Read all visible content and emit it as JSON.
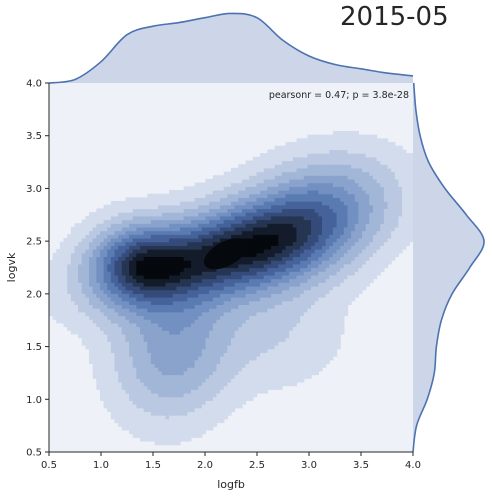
{
  "page_title": "2015-05",
  "chart_data": {
    "type": "kde-joint",
    "xlabel": "logfb",
    "ylabel": "logvk",
    "xlim": [
      0.5,
      4.0
    ],
    "ylim": [
      0.5,
      4.0
    ],
    "x_ticks": [
      "0.5",
      "1.0",
      "1.5",
      "2.0",
      "2.5",
      "3.0",
      "3.5",
      "4.0"
    ],
    "y_ticks": [
      "0.5",
      "1.0",
      "1.5",
      "2.0",
      "2.5",
      "3.0",
      "3.5",
      "4.0"
    ],
    "annotation": "pearsonr = 0.47; p = 3.8e-28",
    "grid": false,
    "colors": {
      "line": "#4c72b0",
      "fill": "#ccd6e8",
      "background": "#eef1f7",
      "levels": [
        "#d3dcec",
        "#bac9e1",
        "#a2b6d7",
        "#8aa3cc",
        "#7290c2",
        "#5a7ab2",
        "#46629a",
        "#354b79",
        "#253552",
        "#141c2b",
        "#05080d"
      ]
    },
    "joint_peak": {
      "x": 2.2,
      "y": 2.38,
      "r": 0.46
    },
    "density_levels": [
      0.04,
      0.11,
      0.19,
      0.28,
      0.37,
      0.46,
      0.56,
      0.66,
      0.75,
      0.84,
      0.92
    ],
    "joint_components": [
      {
        "x": 2.2,
        "y": 2.4,
        "sx": 0.72,
        "sy": 0.32,
        "rho": 0.5,
        "w": 1.0
      },
      {
        "x": 1.35,
        "y": 2.3,
        "sx": 0.3,
        "sy": 0.25,
        "rho": 0.0,
        "w": 0.65
      },
      {
        "x": 1.7,
        "y": 1.5,
        "sx": 0.38,
        "sy": 0.45,
        "rho": 0.1,
        "w": 0.42
      },
      {
        "x": 2.9,
        "y": 2.6,
        "sx": 0.5,
        "sy": 0.4,
        "rho": 0.35,
        "w": 0.4
      },
      {
        "x": 3.2,
        "y": 3.0,
        "sx": 0.45,
        "sy": 0.28,
        "rho": 0.2,
        "w": 0.14
      },
      {
        "x": 2.7,
        "y": 1.6,
        "sx": 0.45,
        "sy": 0.35,
        "rho": 0.0,
        "w": 0.12
      }
    ],
    "x_marginal": {
      "x": [
        0.5,
        0.75,
        1.0,
        1.25,
        1.5,
        1.75,
        2.0,
        2.25,
        2.5,
        2.75,
        3.0,
        3.25,
        3.5,
        3.75,
        4.0
      ],
      "density": [
        0.0,
        0.05,
        0.3,
        0.68,
        0.8,
        0.85,
        0.92,
        0.98,
        0.92,
        0.6,
        0.38,
        0.26,
        0.2,
        0.14,
        0.1
      ]
    },
    "y_marginal": {
      "y": [
        0.5,
        0.75,
        1.0,
        1.25,
        1.5,
        1.75,
        2.0,
        2.25,
        2.5,
        2.75,
        3.0,
        3.25,
        3.5,
        3.75,
        4.0
      ],
      "density": [
        0.0,
        0.05,
        0.2,
        0.3,
        0.33,
        0.4,
        0.55,
        0.8,
        1.0,
        0.75,
        0.45,
        0.22,
        0.1,
        0.04,
        0.01
      ]
    }
  }
}
